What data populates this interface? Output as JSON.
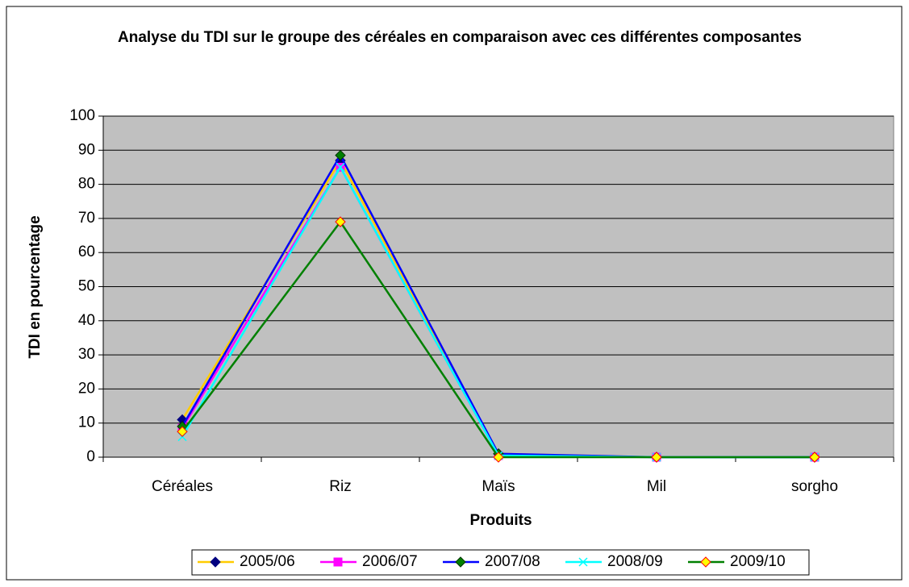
{
  "chart_data": {
    "type": "line",
    "title": "Analyse du TDI sur le groupe des céréales en comparaison avec ces différentes composantes",
    "x_label": "Produits",
    "y_label": "TDI en pourcentage",
    "categories": [
      "Céréales",
      "Riz",
      "Maïs",
      "Mil",
      "sorgho"
    ],
    "ylim": [
      0,
      100
    ],
    "yticks": [
      0,
      10,
      20,
      30,
      40,
      50,
      60,
      70,
      80,
      90,
      100
    ],
    "grid": true,
    "legend": "bottom",
    "series": [
      {
        "name": "2005/06",
        "color": "#FFCC00",
        "marker": {
          "shape": "diamond",
          "fill": "#000080",
          "stroke": "#000080"
        },
        "values": [
          11,
          87,
          1,
          0,
          0
        ]
      },
      {
        "name": "2006/07",
        "color": "#FF00FF",
        "marker": {
          "shape": "square",
          "fill": "#FF00FF",
          "stroke": "#FF00FF"
        },
        "values": [
          8.5,
          85,
          0.5,
          0,
          0
        ]
      },
      {
        "name": "2007/08",
        "color": "#0000FF",
        "marker": {
          "shape": "diamond",
          "fill": "#008000",
          "stroke": "#003300"
        },
        "values": [
          9,
          88.5,
          1,
          0,
          0
        ]
      },
      {
        "name": "2008/09",
        "color": "#00FFFF",
        "marker": {
          "shape": "x",
          "fill": "#00FFFF",
          "stroke": "#00FFFF"
        },
        "values": [
          6,
          85,
          0.5,
          0,
          0
        ]
      },
      {
        "name": "2009/10",
        "color": "#008000",
        "marker": {
          "shape": "diamond",
          "fill": "#FFFF00",
          "stroke": "#FF0000"
        },
        "values": [
          7.5,
          69,
          0,
          0,
          0
        ]
      }
    ]
  }
}
